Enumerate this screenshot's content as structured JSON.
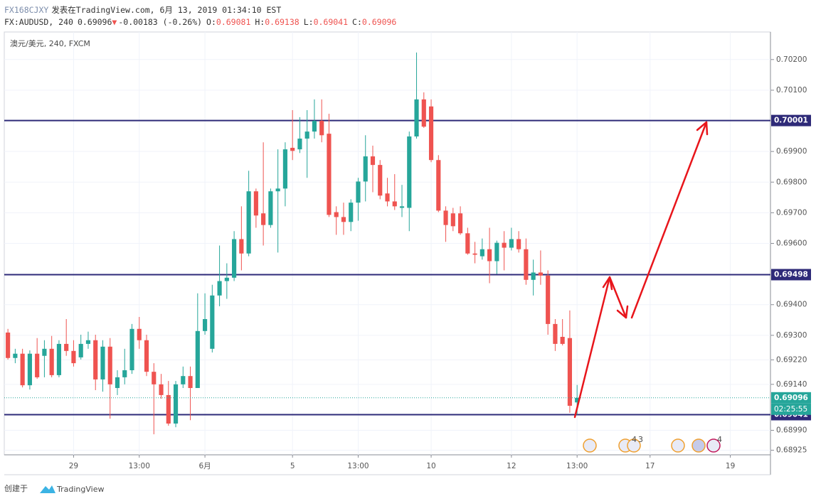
{
  "chart_data": {
    "type": "candlestick",
    "header": {
      "author": "FX168CJXY",
      "published": "发表在TradingView.com, 6月 13, 2019 01:34:10 EST",
      "symbol": "FX:AUDUSD, 240",
      "change_arrow": "▼",
      "change": "-0.00183 (-0.26%)",
      "ohlc_prefixes": [
        "O:",
        "H:",
        "L:",
        "C:"
      ]
    },
    "legend_text": "澳元/美元, 240, FXCM",
    "categories": [
      null,
      null,
      null,
      null,
      null,
      null,
      null,
      null,
      null,
      "29",
      null,
      null,
      null,
      null,
      null,
      null,
      null,
      null,
      "13:00",
      null,
      null,
      null,
      null,
      null,
      null,
      null,
      null,
      "6月",
      null,
      null,
      null,
      null,
      null,
      null,
      null,
      null,
      null,
      null,
      null,
      "5",
      null,
      null,
      null,
      null,
      null,
      null,
      null,
      null,
      "13:00",
      null,
      null,
      null,
      null,
      null,
      null,
      null,
      null,
      null,
      "10",
      null,
      null,
      null,
      null,
      null,
      null,
      null,
      null,
      null,
      null,
      "12",
      null,
      null,
      null,
      null,
      null,
      null,
      null,
      null,
      "13:00",
      null,
      null,
      null,
      null,
      null,
      null,
      null,
      null,
      null,
      "17",
      null,
      null,
      null,
      null,
      null,
      null,
      null,
      null,
      null,
      null,
      "19",
      null,
      null,
      null,
      null,
      null
    ],
    "open": [
      0.69309,
      0.69226,
      0.6924,
      0.69137,
      0.6924,
      0.69233,
      0.69256,
      0.6917,
      0.69272,
      0.69249,
      0.69228,
      0.69272,
      0.69284,
      0.69156,
      0.69263,
      0.69128,
      0.69163,
      0.69186,
      0.69321,
      0.69284,
      0.69181,
      0.6914,
      0.69105,
      0.69012,
      0.6914,
      0.69167,
      0.69128,
      0.69314,
      0.69256,
      0.6943,
      0.69477,
      0.69488,
      0.69614,
      0.69567,
      0.6977,
      0.69698,
      0.6966,
      0.6977,
      0.69779,
      0.69912,
      0.69907,
      0.69942,
      0.69965,
      0.7,
      0.69958,
      0.69702,
      0.69686,
      0.6967,
      0.69733,
      0.69802,
      0.69884,
      0.69856,
      0.69763,
      0.69737,
      0.69716,
      0.69716,
      0.69949,
      0.7007,
      0.70047,
      0.69872,
      0.69707,
      0.69698,
      0.69698,
      0.69633,
      0.69567,
      0.69558,
      0.69581,
      0.69542,
      0.69602,
      0.69586,
      0.69614,
      0.69581,
      0.69481,
      0.69505,
      0.69495,
      0.69337,
      0.69295,
      0.69291,
      0.69081,
      null,
      null,
      null,
      null,
      null,
      null,
      null,
      null,
      null,
      null,
      null,
      null,
      null,
      null,
      null,
      null,
      null,
      null,
      null,
      null,
      null,
      null,
      null,
      null,
      null,
      null
    ],
    "high": [
      0.69321,
      0.69256,
      0.69256,
      0.69251,
      0.69291,
      0.69284,
      0.69298,
      0.69284,
      0.69353,
      0.69284,
      0.69302,
      0.69312,
      0.69302,
      0.69284,
      0.69291,
      0.69186,
      0.69256,
      0.69337,
      0.6936,
      0.69302,
      0.69209,
      0.69174,
      0.69151,
      0.69151,
      0.69198,
      0.69198,
      0.69437,
      0.69437,
      0.69465,
      0.69593,
      0.69535,
      0.6964,
      0.69721,
      0.69837,
      0.69779,
      0.6993,
      0.69779,
      0.69907,
      0.6993,
      0.70035,
      0.70012,
      0.70035,
      0.7007,
      0.7007,
      0.70023,
      0.69721,
      0.69733,
      0.69744,
      0.69814,
      0.69953,
      0.69919,
      0.69872,
      0.69814,
      0.69826,
      0.69791,
      0.69965,
      0.70223,
      0.70093,
      0.7007,
      0.69888,
      0.69721,
      0.69716,
      0.69721,
      0.69651,
      0.69605,
      0.69616,
      0.69651,
      0.69609,
      0.6964,
      0.69651,
      0.6964,
      0.69616,
      0.69547,
      0.69577,
      0.69512,
      0.69353,
      0.69353,
      0.69381,
      0.69138,
      null,
      null,
      null,
      null,
      null,
      null,
      null,
      null,
      null,
      null,
      null,
      null,
      null,
      null,
      null,
      null,
      null,
      null,
      null,
      null,
      null,
      null,
      null,
      null,
      null,
      null
    ],
    "low": [
      0.69221,
      0.69209,
      0.6913,
      0.69123,
      0.69158,
      0.69163,
      0.69163,
      0.69163,
      0.69233,
      0.69198,
      0.69221,
      0.69256,
      0.69121,
      0.69116,
      0.69028,
      0.69105,
      0.6914,
      0.69174,
      0.69256,
      0.69167,
      0.68977,
      0.69093,
      0.69005,
      0.69,
      0.69128,
      0.69023,
      0.69128,
      0.69302,
      0.69244,
      0.69395,
      0.69419,
      0.69477,
      0.69512,
      0.69558,
      0.69651,
      0.69593,
      0.69651,
      0.6957,
      0.69721,
      0.69872,
      0.69895,
      0.69814,
      0.69942,
      0.6993,
      0.69686,
      0.69628,
      0.69628,
      0.6964,
      0.69674,
      0.69737,
      0.69767,
      0.69744,
      0.69721,
      0.69709,
      0.69686,
      0.6964,
      0.69942,
      0.69977,
      0.69865,
      0.69702,
      0.69605,
      0.6964,
      0.69628,
      0.69563,
      0.69535,
      0.69547,
      0.6947,
      0.695,
      0.69512,
      0.69577,
      0.6957,
      0.69465,
      0.6943,
      0.69465,
      0.69302,
      0.69249,
      0.69267,
      0.69047,
      0.69041,
      null,
      null,
      null,
      null,
      null,
      null,
      null,
      null,
      null,
      null,
      null,
      null,
      null,
      null,
      null,
      null,
      null,
      null,
      null,
      null,
      null,
      null,
      null,
      null,
      null,
      null
    ],
    "close": [
      0.69226,
      0.6924,
      0.69137,
      0.6924,
      0.69163,
      0.69256,
      0.6917,
      0.69272,
      0.69249,
      0.69209,
      0.69272,
      0.69284,
      0.69156,
      0.69263,
      0.6914,
      0.69163,
      0.69186,
      0.69321,
      0.69284,
      0.69181,
      0.6914,
      0.69105,
      0.69012,
      0.6914,
      0.69167,
      0.69128,
      0.69314,
      0.69353,
      0.6943,
      0.69477,
      0.69488,
      0.69614,
      0.69567,
      0.6977,
      0.69691,
      0.6966,
      0.6977,
      0.69779,
      0.69907,
      0.69902,
      0.69942,
      0.69965,
      0.7,
      0.69953,
      0.69693,
      0.69686,
      0.6967,
      0.69733,
      0.69802,
      0.69884,
      0.69856,
      0.69756,
      0.69737,
      0.69721,
      0.69721,
      0.69949,
      0.7007,
      0.69981,
      0.69872,
      0.69707,
      0.6966,
      0.69656,
      0.69633,
      0.69567,
      0.69563,
      0.69581,
      0.69542,
      0.69602,
      0.69586,
      0.69614,
      0.69581,
      0.69481,
      0.69505,
      0.69495,
      0.69337,
      0.69272,
      0.69272,
      0.6907,
      0.69096,
      null,
      null,
      null,
      null,
      null,
      null,
      null,
      null,
      null,
      null,
      null,
      null,
      null,
      null,
      null,
      null,
      null,
      null,
      null,
      null,
      null,
      null,
      null,
      null,
      null,
      null
    ],
    "up_color": "#26a69a",
    "down_color": "#ef5350",
    "ylim": [
      0.6891,
      0.7029
    ],
    "yticks": [
      {
        "value": 0.702,
        "label": "0.70200"
      },
      {
        "value": 0.701,
        "label": "0.70100"
      },
      {
        "value": 0.699,
        "label": "0.69900"
      },
      {
        "value": 0.698,
        "label": "0.69800"
      },
      {
        "value": 0.697,
        "label": "0.69700"
      },
      {
        "value": 0.696,
        "label": "0.69600"
      },
      {
        "value": 0.694,
        "label": "0.69400"
      },
      {
        "value": 0.693,
        "label": "0.69300"
      },
      {
        "value": 0.6922,
        "label": "0.69220"
      },
      {
        "value": 0.6914,
        "label": "0.69140"
      },
      {
        "value": 0.6899,
        "label": "0.68990"
      },
      0.68925
    ],
    "grid": true,
    "hlines": [
      0.70001,
      0.69498,
      0.69041
    ],
    "hline_color": "#2e2a78",
    "countdown": "02:25:55",
    "event_counts": [
      4,
      3,
      4
    ]
  },
  "footer": {
    "created": "创建于",
    "brand": "TradingView"
  }
}
